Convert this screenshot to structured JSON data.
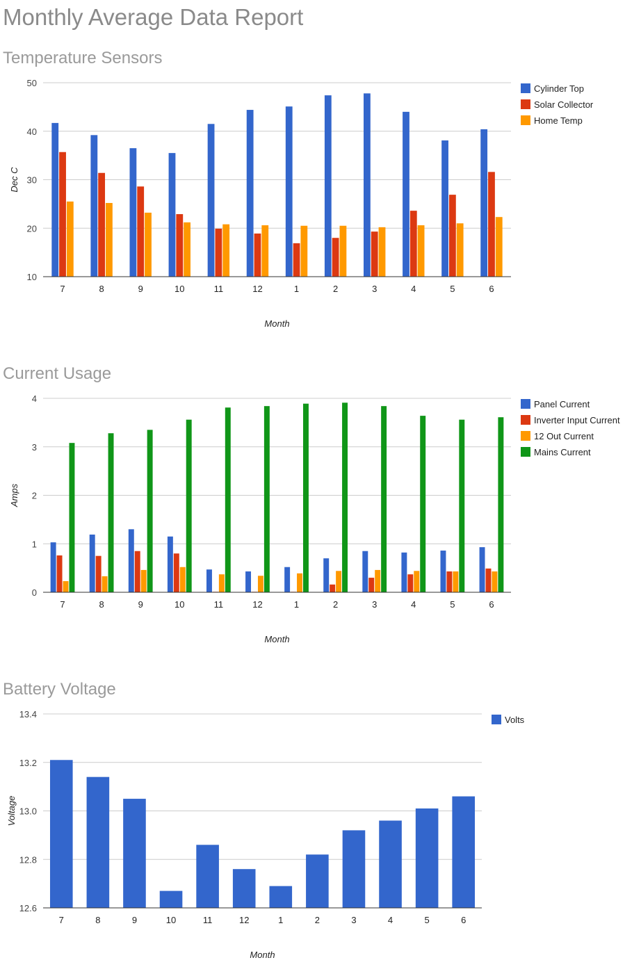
{
  "page_title": "Monthly Average Data Report",
  "chart_data": [
    {
      "type": "bar",
      "title": "Temperature Sensors",
      "xlabel": "Month",
      "ylabel": "Dec C",
      "ylim": [
        10,
        50
      ],
      "yticks": [
        "10",
        "20",
        "30",
        "40",
        "50"
      ],
      "grid": true,
      "legend_position": "right",
      "categories": [
        "7",
        "8",
        "9",
        "10",
        "11",
        "12",
        "1",
        "2",
        "3",
        "4",
        "5",
        "6"
      ],
      "series": [
        {
          "name": "Cylinder Top",
          "color": "#3366cc",
          "values": [
            41.7,
            39.2,
            36.5,
            35.5,
            41.5,
            44.4,
            45.1,
            47.4,
            47.8,
            44.0,
            38.1,
            40.4
          ]
        },
        {
          "name": "Solar Collector",
          "color": "#dc3912",
          "values": [
            35.7,
            31.4,
            28.6,
            22.9,
            19.9,
            18.9,
            16.9,
            18.0,
            19.3,
            23.6,
            26.9,
            31.6
          ]
        },
        {
          "name": "Home Temp",
          "color": "#ff9900",
          "values": [
            25.5,
            25.2,
            23.2,
            21.2,
            20.8,
            20.6,
            20.5,
            20.5,
            20.2,
            20.6,
            21.0,
            22.3
          ]
        }
      ]
    },
    {
      "type": "bar",
      "title": "Current Usage",
      "xlabel": "Month",
      "ylabel": "Amps",
      "ylim": [
        0,
        4
      ],
      "yticks": [
        "0",
        "1",
        "2",
        "3",
        "4"
      ],
      "grid": true,
      "legend_position": "right",
      "categories": [
        "7",
        "8",
        "9",
        "10",
        "11",
        "12",
        "1",
        "2",
        "3",
        "4",
        "5",
        "6"
      ],
      "series": [
        {
          "name": "Panel Current",
          "color": "#3366cc",
          "values": [
            1.03,
            1.19,
            1.3,
            1.15,
            0.47,
            0.43,
            0.52,
            0.7,
            0.85,
            0.82,
            0.86,
            0.93
          ]
        },
        {
          "name": "Inverter Input Current",
          "color": "#dc3912",
          "values": [
            0.76,
            0.75,
            0.85,
            0.8,
            0.01,
            0.01,
            0.01,
            0.16,
            0.3,
            0.37,
            0.43,
            0.49
          ]
        },
        {
          "name": "12 Out Current",
          "color": "#ff9900",
          "values": [
            0.23,
            0.33,
            0.46,
            0.52,
            0.37,
            0.34,
            0.39,
            0.44,
            0.46,
            0.44,
            0.43,
            0.43
          ]
        },
        {
          "name": "Mains Current",
          "color": "#109618",
          "values": [
            3.08,
            3.28,
            3.35,
            3.56,
            3.81,
            3.84,
            3.89,
            3.91,
            3.84,
            3.64,
            3.56,
            3.61
          ]
        }
      ]
    },
    {
      "type": "bar",
      "title": "Battery Voltage",
      "xlabel": "Month",
      "ylabel": "Voltage",
      "ylim": [
        12.6,
        13.4
      ],
      "yticks": [
        "12.6",
        "12.8",
        "13.0",
        "13.2",
        "13.4"
      ],
      "grid": true,
      "legend_position": "right",
      "categories": [
        "7",
        "8",
        "9",
        "10",
        "11",
        "12",
        "1",
        "2",
        "3",
        "4",
        "5",
        "6"
      ],
      "series": [
        {
          "name": "Volts",
          "color": "#3366cc",
          "values": [
            13.21,
            13.14,
            13.05,
            12.67,
            12.86,
            12.76,
            12.69,
            12.82,
            12.92,
            12.96,
            13.01,
            13.06
          ]
        }
      ]
    }
  ]
}
